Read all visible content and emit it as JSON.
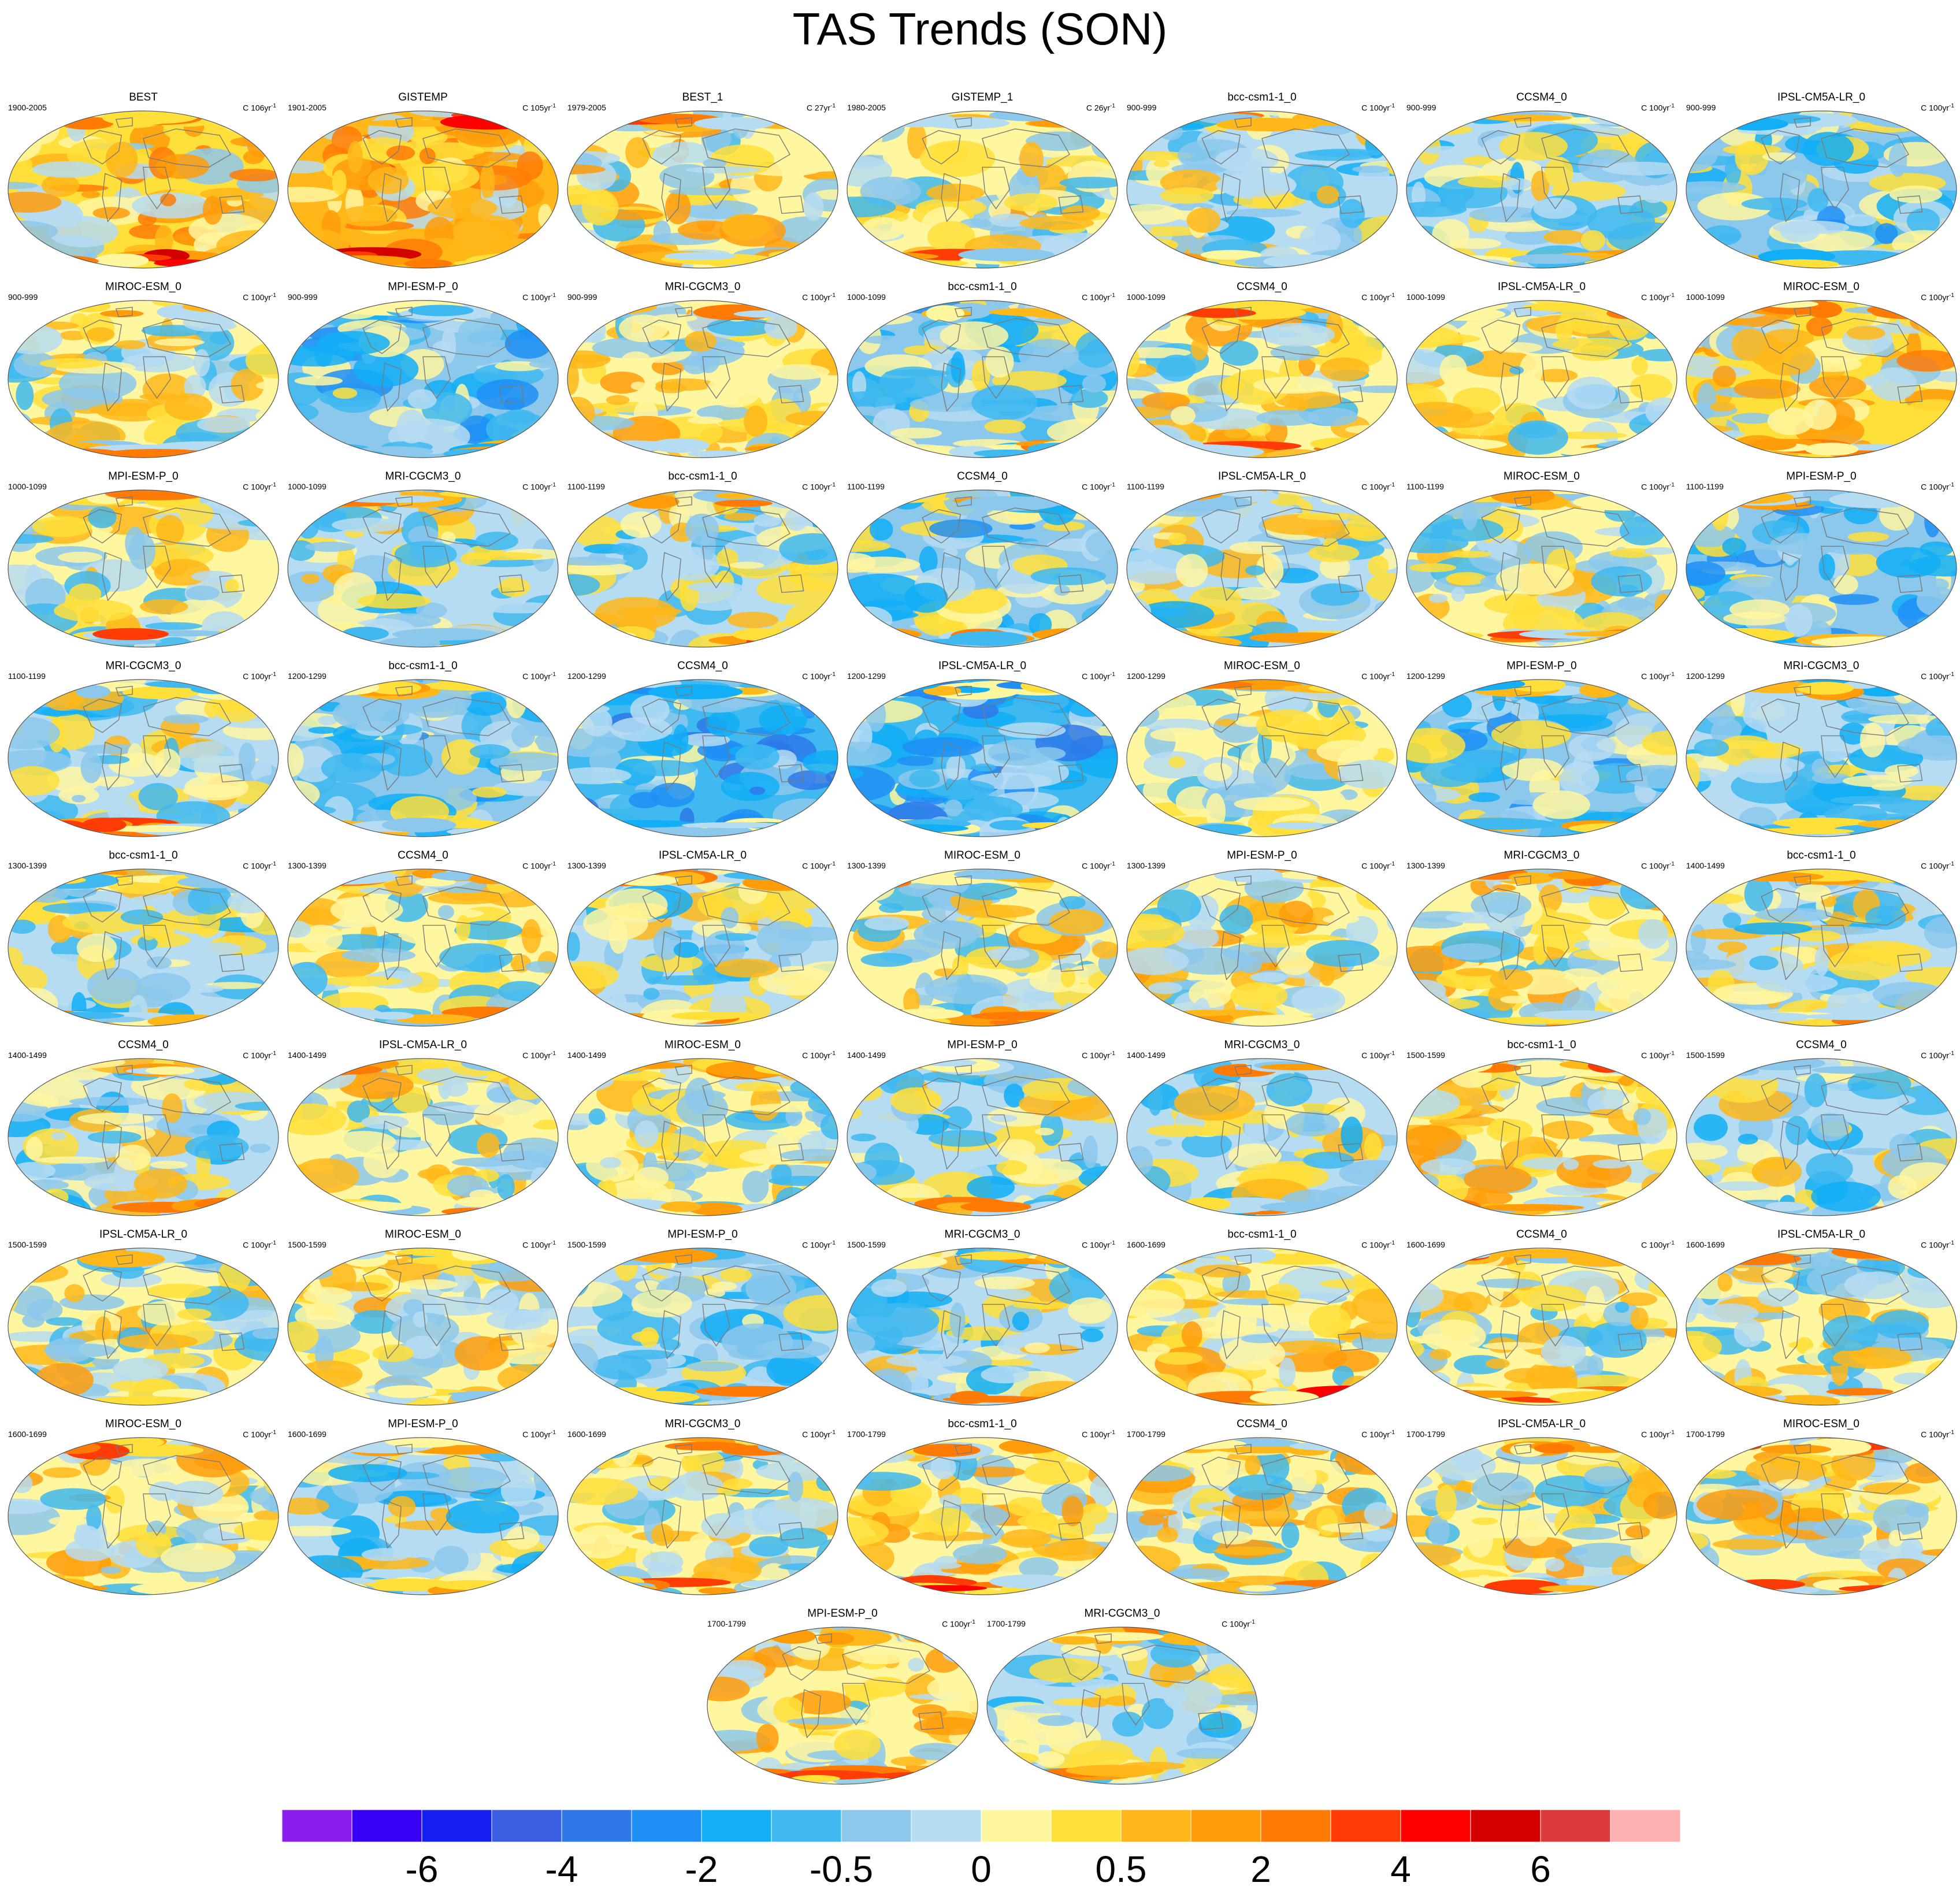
{
  "title": "TAS Trends (SON)",
  "colors": {
    "land_outline": "#7a7a7a",
    "map_border": "#555555"
  },
  "colorbar": {
    "colors": [
      "#8a1eec",
      "#3700f5",
      "#1420f2",
      "#3a5ee2",
      "#2e78ea",
      "#1f8ff5",
      "#12aef6",
      "#40b9f0",
      "#8cc8ec",
      "#b6dcf2",
      "#fff6a0",
      "#ffdf3a",
      "#ffb719",
      "#ff9c0a",
      "#ff7b06",
      "#ff3c05",
      "#ff0000",
      "#d40000",
      "#dc3a3a",
      "#ffb0b0"
    ],
    "labels": [
      {
        "text": "-6",
        "boundary": 2
      },
      {
        "text": "-4",
        "boundary": 4
      },
      {
        "text": "-2",
        "boundary": 6
      },
      {
        "text": "-0.5",
        "boundary": 8
      },
      {
        "text": "0",
        "boundary": 10
      },
      {
        "text": "0.5",
        "boundary": 12
      },
      {
        "text": "2",
        "boundary": 14
      },
      {
        "text": "4",
        "boundary": 16
      },
      {
        "text": "6",
        "boundary": 18
      }
    ]
  },
  "chart_data": {
    "type": "heatmap",
    "title": "TAS Trends (SON)",
    "colorbar_levels": [
      "-6",
      "-4",
      "-2",
      "-0.5",
      "0",
      "0.5",
      "2",
      "4",
      "6"
    ],
    "panels": [
      {
        "name": "BEST",
        "period": "1900-2005",
        "units": "C 106yr",
        "tone": 0.62
      },
      {
        "name": "GISTEMP",
        "period": "1901-2005",
        "units": "C 105yr",
        "tone": 0.66
      },
      {
        "name": "BEST_1",
        "period": "1979-2005",
        "units": "C 27yr",
        "tone": 0.55
      },
      {
        "name": "GISTEMP_1",
        "period": "1980-2005",
        "units": "C 26yr",
        "tone": 0.52
      },
      {
        "name": "bcc-csm1-1_0",
        "period": "900-999",
        "units": "C 100yr",
        "tone": 0.47
      },
      {
        "name": "CCSM4_0",
        "period": "900-999",
        "units": "C 100yr",
        "tone": 0.46
      },
      {
        "name": "IPSL-CM5A-LR_0",
        "period": "900-999",
        "units": "C 100yr",
        "tone": 0.42
      },
      {
        "name": "MIROC-ESM_0",
        "period": "900-999",
        "units": "C 100yr",
        "tone": 0.5
      },
      {
        "name": "MPI-ESM-P_0",
        "period": "900-999",
        "units": "C 100yr",
        "tone": 0.38
      },
      {
        "name": "MRI-CGCM3_0",
        "period": "900-999",
        "units": "C 100yr",
        "tone": 0.52
      },
      {
        "name": "bcc-csm1-1_0",
        "period": "1000-1099",
        "units": "C 100yr",
        "tone": 0.42
      },
      {
        "name": "CCSM4_0",
        "period": "1000-1099",
        "units": "C 100yr",
        "tone": 0.53
      },
      {
        "name": "IPSL-CM5A-LR_0",
        "period": "1000-1099",
        "units": "C 100yr",
        "tone": 0.5
      },
      {
        "name": "MIROC-ESM_0",
        "period": "1000-1099",
        "units": "C 100yr",
        "tone": 0.58
      },
      {
        "name": "MPI-ESM-P_0",
        "period": "1000-1099",
        "units": "C 100yr",
        "tone": 0.5
      },
      {
        "name": "MRI-CGCM3_0",
        "period": "1000-1099",
        "units": "C 100yr",
        "tone": 0.46
      },
      {
        "name": "bcc-csm1-1_0",
        "period": "1100-1199",
        "units": "C 100yr",
        "tone": 0.48
      },
      {
        "name": "CCSM4_0",
        "period": "1100-1199",
        "units": "C 100yr",
        "tone": 0.42
      },
      {
        "name": "IPSL-CM5A-LR_0",
        "period": "1100-1199",
        "units": "C 100yr",
        "tone": 0.47
      },
      {
        "name": "MIROC-ESM_0",
        "period": "1100-1199",
        "units": "C 100yr",
        "tone": 0.5
      },
      {
        "name": "MPI-ESM-P_0",
        "period": "1100-1199",
        "units": "C 100yr",
        "tone": 0.4
      },
      {
        "name": "MRI-CGCM3_0",
        "period": "1100-1199",
        "units": "C 100yr",
        "tone": 0.49
      },
      {
        "name": "bcc-csm1-1_0",
        "period": "1200-1299",
        "units": "C 100yr",
        "tone": 0.42
      },
      {
        "name": "CCSM4_0",
        "period": "1200-1299",
        "units": "C 100yr",
        "tone": 0.3
      },
      {
        "name": "IPSL-CM5A-LR_0",
        "period": "1200-1299",
        "units": "C 100yr",
        "tone": 0.33
      },
      {
        "name": "MIROC-ESM_0",
        "period": "1200-1299",
        "units": "C 100yr",
        "tone": 0.5
      },
      {
        "name": "MPI-ESM-P_0",
        "period": "1200-1299",
        "units": "C 100yr",
        "tone": 0.4
      },
      {
        "name": "MRI-CGCM3_0",
        "period": "1200-1299",
        "units": "C 100yr",
        "tone": 0.43
      },
      {
        "name": "bcc-csm1-1_0",
        "period": "1300-1399",
        "units": "C 100yr",
        "tone": 0.46
      },
      {
        "name": "CCSM4_0",
        "period": "1300-1399",
        "units": "C 100yr",
        "tone": 0.5
      },
      {
        "name": "IPSL-CM5A-LR_0",
        "period": "1300-1399",
        "units": "C 100yr",
        "tone": 0.47
      },
      {
        "name": "MIROC-ESM_0",
        "period": "1300-1399",
        "units": "C 100yr",
        "tone": 0.52
      },
      {
        "name": "MPI-ESM-P_0",
        "period": "1300-1399",
        "units": "C 100yr",
        "tone": 0.55
      },
      {
        "name": "MRI-CGCM3_0",
        "period": "1300-1399",
        "units": "C 100yr",
        "tone": 0.52
      },
      {
        "name": "bcc-csm1-1_0",
        "period": "1400-1499",
        "units": "C 100yr",
        "tone": 0.47
      },
      {
        "name": "CCSM4_0",
        "period": "1400-1499",
        "units": "C 100yr",
        "tone": 0.48
      },
      {
        "name": "IPSL-CM5A-LR_0",
        "period": "1400-1499",
        "units": "C 100yr",
        "tone": 0.52
      },
      {
        "name": "MIROC-ESM_0",
        "period": "1400-1499",
        "units": "C 100yr",
        "tone": 0.5
      },
      {
        "name": "MPI-ESM-P_0",
        "period": "1400-1499",
        "units": "C 100yr",
        "tone": 0.48
      },
      {
        "name": "MRI-CGCM3_0",
        "period": "1400-1499",
        "units": "C 100yr",
        "tone": 0.46
      },
      {
        "name": "bcc-csm1-1_0",
        "period": "1500-1599",
        "units": "C 100yr",
        "tone": 0.56
      },
      {
        "name": "CCSM4_0",
        "period": "1500-1599",
        "units": "C 100yr",
        "tone": 0.45
      },
      {
        "name": "IPSL-CM5A-LR_0",
        "period": "1500-1599",
        "units": "C 100yr",
        "tone": 0.52
      },
      {
        "name": "MIROC-ESM_0",
        "period": "1500-1599",
        "units": "C 100yr",
        "tone": 0.53
      },
      {
        "name": "MPI-ESM-P_0",
        "period": "1500-1599",
        "units": "C 100yr",
        "tone": 0.44
      },
      {
        "name": "MRI-CGCM3_0",
        "period": "1500-1599",
        "units": "C 100yr",
        "tone": 0.46
      },
      {
        "name": "bcc-csm1-1_0",
        "period": "1600-1699",
        "units": "C 100yr",
        "tone": 0.56
      },
      {
        "name": "CCSM4_0",
        "period": "1600-1699",
        "units": "C 100yr",
        "tone": 0.52
      },
      {
        "name": "IPSL-CM5A-LR_0",
        "period": "1600-1699",
        "units": "C 100yr",
        "tone": 0.5
      },
      {
        "name": "MIROC-ESM_0",
        "period": "1600-1699",
        "units": "C 100yr",
        "tone": 0.53
      },
      {
        "name": "MPI-ESM-P_0",
        "period": "1600-1699",
        "units": "C 100yr",
        "tone": 0.46
      },
      {
        "name": "MRI-CGCM3_0",
        "period": "1600-1699",
        "units": "C 100yr",
        "tone": 0.5
      },
      {
        "name": "bcc-csm1-1_0",
        "period": "1700-1799",
        "units": "C 100yr",
        "tone": 0.56
      },
      {
        "name": "CCSM4_0",
        "period": "1700-1799",
        "units": "C 100yr",
        "tone": 0.54
      },
      {
        "name": "IPSL-CM5A-LR_0",
        "period": "1700-1799",
        "units": "C 100yr",
        "tone": 0.53
      },
      {
        "name": "MIROC-ESM_0",
        "period": "1700-1799",
        "units": "C 100yr",
        "tone": 0.56
      },
      {
        "name": "MPI-ESM-P_0",
        "period": "1700-1799",
        "units": "C 100yr",
        "tone": 0.55
      },
      {
        "name": "MRI-CGCM3_0",
        "period": "1700-1799",
        "units": "C 100yr",
        "tone": 0.48
      }
    ]
  }
}
